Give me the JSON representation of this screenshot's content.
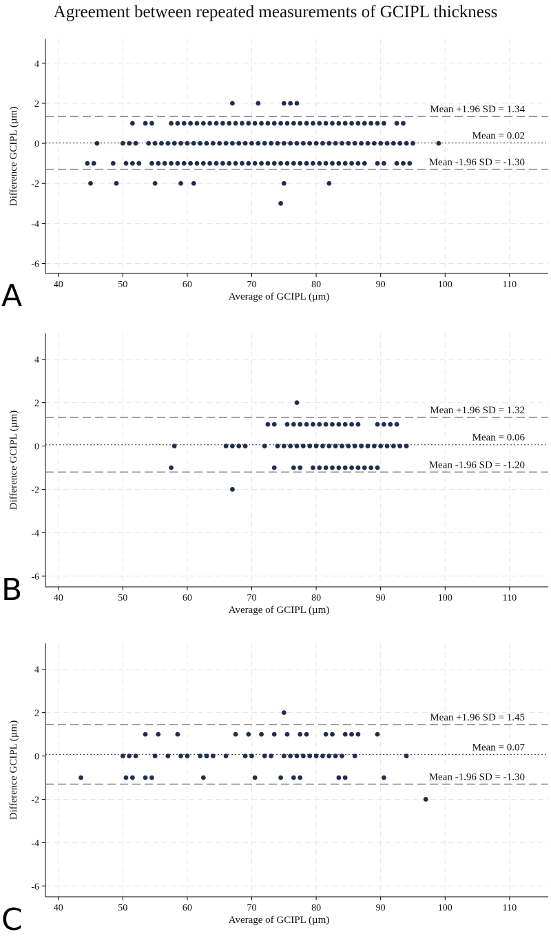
{
  "title": "Agreement between repeated measurements of GCIPL thickness",
  "colors": {
    "points": "#1f2d4e",
    "grid": "#e6e6e6",
    "axis": "#000000",
    "limit_line": "#7a7a7a",
    "mean_line": "#555555"
  },
  "chart_data": [
    {
      "type": "scatter",
      "panel": "A",
      "xlabel": "Average of GCIPL (µm)",
      "ylabel": "Difference GCIPL (µm)",
      "xlim": [
        38,
        116
      ],
      "ylim": [
        -6.5,
        5.2
      ],
      "xticks": [
        40,
        50,
        60,
        70,
        80,
        90,
        100,
        110
      ],
      "yticks": [
        -6,
        -4,
        -2,
        0,
        2,
        4
      ],
      "lines": {
        "upper": {
          "value": 1.34,
          "label": "Mean +1.96 SD = 1.34"
        },
        "mean": {
          "value": 0.02,
          "label": "Mean = 0.02"
        },
        "lower": {
          "value": -1.3,
          "label": "Mean -1.96 SD = -1.30"
        }
      },
      "points": [
        [
          67,
          2
        ],
        [
          71,
          2
        ],
        [
          75,
          2
        ],
        [
          76,
          2
        ],
        [
          77,
          2
        ],
        [
          51.5,
          1
        ],
        [
          53.5,
          1
        ],
        [
          54.5,
          1
        ],
        [
          57.5,
          1
        ],
        [
          58.5,
          1
        ],
        [
          59.5,
          1
        ],
        [
          60.5,
          1
        ],
        [
          61.5,
          1
        ],
        [
          62.5,
          1
        ],
        [
          63.5,
          1
        ],
        [
          64.5,
          1
        ],
        [
          65.5,
          1
        ],
        [
          66.5,
          1
        ],
        [
          67.5,
          1
        ],
        [
          68.5,
          1
        ],
        [
          69.5,
          1
        ],
        [
          70.5,
          1
        ],
        [
          71.5,
          1
        ],
        [
          72.5,
          1
        ],
        [
          73.5,
          1
        ],
        [
          74.5,
          1
        ],
        [
          75.5,
          1
        ],
        [
          76.5,
          1
        ],
        [
          77.5,
          1
        ],
        [
          78.5,
          1
        ],
        [
          79.5,
          1
        ],
        [
          80.5,
          1
        ],
        [
          81.5,
          1
        ],
        [
          82.5,
          1
        ],
        [
          83.5,
          1
        ],
        [
          84.5,
          1
        ],
        [
          85.5,
          1
        ],
        [
          86.5,
          1
        ],
        [
          87.5,
          1
        ],
        [
          88.5,
          1
        ],
        [
          89.5,
          1
        ],
        [
          90.5,
          1
        ],
        [
          92.5,
          1
        ],
        [
          93.5,
          1
        ],
        [
          46,
          0
        ],
        [
          50,
          0
        ],
        [
          51,
          0
        ],
        [
          52,
          0
        ],
        [
          54,
          0
        ],
        [
          55,
          0
        ],
        [
          56,
          0
        ],
        [
          57,
          0
        ],
        [
          58,
          0
        ],
        [
          59,
          0
        ],
        [
          60,
          0
        ],
        [
          61,
          0
        ],
        [
          62,
          0
        ],
        [
          63,
          0
        ],
        [
          64,
          0
        ],
        [
          65,
          0
        ],
        [
          66,
          0
        ],
        [
          67,
          0
        ],
        [
          68,
          0
        ],
        [
          69,
          0
        ],
        [
          70,
          0
        ],
        [
          71,
          0
        ],
        [
          72,
          0
        ],
        [
          73,
          0
        ],
        [
          74,
          0
        ],
        [
          75,
          0
        ],
        [
          76,
          0
        ],
        [
          77,
          0
        ],
        [
          78,
          0
        ],
        [
          79,
          0
        ],
        [
          80,
          0
        ],
        [
          81,
          0
        ],
        [
          82,
          0
        ],
        [
          83,
          0
        ],
        [
          84,
          0
        ],
        [
          85,
          0
        ],
        [
          86,
          0
        ],
        [
          87,
          0
        ],
        [
          88,
          0
        ],
        [
          89,
          0
        ],
        [
          90,
          0
        ],
        [
          91,
          0
        ],
        [
          92,
          0
        ],
        [
          93,
          0
        ],
        [
          94,
          0
        ],
        [
          95,
          0
        ],
        [
          99,
          0
        ],
        [
          44.5,
          -1
        ],
        [
          45.5,
          -1
        ],
        [
          48.5,
          -1
        ],
        [
          50.5,
          -1
        ],
        [
          51.5,
          -1
        ],
        [
          52.5,
          -1
        ],
        [
          54.5,
          -1
        ],
        [
          55.5,
          -1
        ],
        [
          56.5,
          -1
        ],
        [
          57.5,
          -1
        ],
        [
          58.5,
          -1
        ],
        [
          59.5,
          -1
        ],
        [
          60.5,
          -1
        ],
        [
          61.5,
          -1
        ],
        [
          62.5,
          -1
        ],
        [
          63.5,
          -1
        ],
        [
          64.5,
          -1
        ],
        [
          65.5,
          -1
        ],
        [
          66.5,
          -1
        ],
        [
          67.5,
          -1
        ],
        [
          68.5,
          -1
        ],
        [
          69.5,
          -1
        ],
        [
          70.5,
          -1
        ],
        [
          71.5,
          -1
        ],
        [
          72.5,
          -1
        ],
        [
          73.5,
          -1
        ],
        [
          74.5,
          -1
        ],
        [
          75.5,
          -1
        ],
        [
          76.5,
          -1
        ],
        [
          77.5,
          -1
        ],
        [
          78.5,
          -1
        ],
        [
          79.5,
          -1
        ],
        [
          80.5,
          -1
        ],
        [
          81.5,
          -1
        ],
        [
          82.5,
          -1
        ],
        [
          83.5,
          -1
        ],
        [
          84.5,
          -1
        ],
        [
          85.5,
          -1
        ],
        [
          86.5,
          -1
        ],
        [
          87.5,
          -1
        ],
        [
          89.5,
          -1
        ],
        [
          90.5,
          -1
        ],
        [
          92.5,
          -1
        ],
        [
          93.5,
          -1
        ],
        [
          94.5,
          -1
        ],
        [
          45,
          -2
        ],
        [
          49,
          -2
        ],
        [
          55,
          -2
        ],
        [
          59,
          -2
        ],
        [
          61,
          -2
        ],
        [
          75,
          -2
        ],
        [
          82,
          -2
        ],
        [
          74.5,
          -3
        ]
      ]
    },
    {
      "type": "scatter",
      "panel": "B",
      "xlabel": "Average of GCIPL (µm)",
      "ylabel": "Difference GCIPL (µm)",
      "xlim": [
        38,
        116
      ],
      "ylim": [
        -6.5,
        5.2
      ],
      "xticks": [
        40,
        50,
        60,
        70,
        80,
        90,
        100,
        110
      ],
      "yticks": [
        -6,
        -4,
        -2,
        0,
        2,
        4
      ],
      "lines": {
        "upper": {
          "value": 1.32,
          "label": "Mean +1.96 SD = 1.32"
        },
        "mean": {
          "value": 0.06,
          "label": "Mean = 0.06"
        },
        "lower": {
          "value": -1.2,
          "label": "Mean -1.96 SD = -1.20"
        }
      },
      "points": [
        [
          77,
          2
        ],
        [
          72.5,
          1
        ],
        [
          73.5,
          1
        ],
        [
          75.5,
          1
        ],
        [
          76.5,
          1
        ],
        [
          77.5,
          1
        ],
        [
          78.5,
          1
        ],
        [
          79.5,
          1
        ],
        [
          80.5,
          1
        ],
        [
          81.5,
          1
        ],
        [
          82.5,
          1
        ],
        [
          83.5,
          1
        ],
        [
          84.5,
          1
        ],
        [
          85.5,
          1
        ],
        [
          86.5,
          1
        ],
        [
          89.5,
          1
        ],
        [
          90.5,
          1
        ],
        [
          91.5,
          1
        ],
        [
          92.5,
          1
        ],
        [
          58,
          0
        ],
        [
          66,
          0
        ],
        [
          67,
          0
        ],
        [
          68,
          0
        ],
        [
          69,
          0
        ],
        [
          72,
          0
        ],
        [
          74,
          0
        ],
        [
          75,
          0
        ],
        [
          76,
          0
        ],
        [
          77,
          0
        ],
        [
          78,
          0
        ],
        [
          79,
          0
        ],
        [
          80,
          0
        ],
        [
          81,
          0
        ],
        [
          82,
          0
        ],
        [
          83,
          0
        ],
        [
          84,
          0
        ],
        [
          85,
          0
        ],
        [
          86,
          0
        ],
        [
          87,
          0
        ],
        [
          88,
          0
        ],
        [
          89,
          0
        ],
        [
          90,
          0
        ],
        [
          91,
          0
        ],
        [
          92,
          0
        ],
        [
          93,
          0
        ],
        [
          94,
          0
        ],
        [
          57.5,
          -1
        ],
        [
          73.5,
          -1
        ],
        [
          76.5,
          -1
        ],
        [
          77.5,
          -1
        ],
        [
          79.5,
          -1
        ],
        [
          80.5,
          -1
        ],
        [
          81.5,
          -1
        ],
        [
          82.5,
          -1
        ],
        [
          83.5,
          -1
        ],
        [
          84.5,
          -1
        ],
        [
          85.5,
          -1
        ],
        [
          86.5,
          -1
        ],
        [
          87.5,
          -1
        ],
        [
          88.5,
          -1
        ],
        [
          89.5,
          -1
        ],
        [
          67,
          -2
        ]
      ]
    },
    {
      "type": "scatter",
      "panel": "C",
      "xlabel": "Average of GCIPL (µm)",
      "ylabel": "Difference GCIPL (µm)",
      "xlim": [
        38,
        116
      ],
      "ylim": [
        -6.5,
        5.2
      ],
      "xticks": [
        40,
        50,
        60,
        70,
        80,
        90,
        100,
        110
      ],
      "yticks": [
        -6,
        -4,
        -2,
        0,
        2,
        4
      ],
      "lines": {
        "upper": {
          "value": 1.45,
          "label": "Mean +1.96 SD = 1.45"
        },
        "mean": {
          "value": 0.07,
          "label": "Mean = 0.07"
        },
        "lower": {
          "value": -1.3,
          "label": "Mean -1.96 SD = -1.30"
        }
      },
      "points": [
        [
          75,
          2
        ],
        [
          53.5,
          1
        ],
        [
          55.5,
          1
        ],
        [
          58.5,
          1
        ],
        [
          67.5,
          1
        ],
        [
          69.5,
          1
        ],
        [
          71.5,
          1
        ],
        [
          73.5,
          1
        ],
        [
          75.5,
          1
        ],
        [
          77.5,
          1
        ],
        [
          78.5,
          1
        ],
        [
          81.5,
          1
        ],
        [
          82.5,
          1
        ],
        [
          84.5,
          1
        ],
        [
          85.5,
          1
        ],
        [
          86.5,
          1
        ],
        [
          89.5,
          1
        ],
        [
          50,
          0
        ],
        [
          51,
          0
        ],
        [
          52,
          0
        ],
        [
          55,
          0
        ],
        [
          57,
          0
        ],
        [
          59,
          0
        ],
        [
          60,
          0
        ],
        [
          62,
          0
        ],
        [
          63,
          0
        ],
        [
          64,
          0
        ],
        [
          66,
          0
        ],
        [
          69,
          0
        ],
        [
          70,
          0
        ],
        [
          72,
          0
        ],
        [
          73,
          0
        ],
        [
          75,
          0
        ],
        [
          76,
          0
        ],
        [
          77,
          0
        ],
        [
          78,
          0
        ],
        [
          79,
          0
        ],
        [
          80,
          0
        ],
        [
          81,
          0
        ],
        [
          82,
          0
        ],
        [
          83,
          0
        ],
        [
          84,
          0
        ],
        [
          86,
          0
        ],
        [
          94,
          0
        ],
        [
          43.5,
          -1
        ],
        [
          50.5,
          -1
        ],
        [
          51.5,
          -1
        ],
        [
          53.5,
          -1
        ],
        [
          54.5,
          -1
        ],
        [
          62.5,
          -1
        ],
        [
          70.5,
          -1
        ],
        [
          74.5,
          -1
        ],
        [
          76.5,
          -1
        ],
        [
          77.5,
          -1
        ],
        [
          83.5,
          -1
        ],
        [
          84.5,
          -1
        ],
        [
          90.5,
          -1
        ],
        [
          97,
          -2
        ]
      ]
    }
  ]
}
